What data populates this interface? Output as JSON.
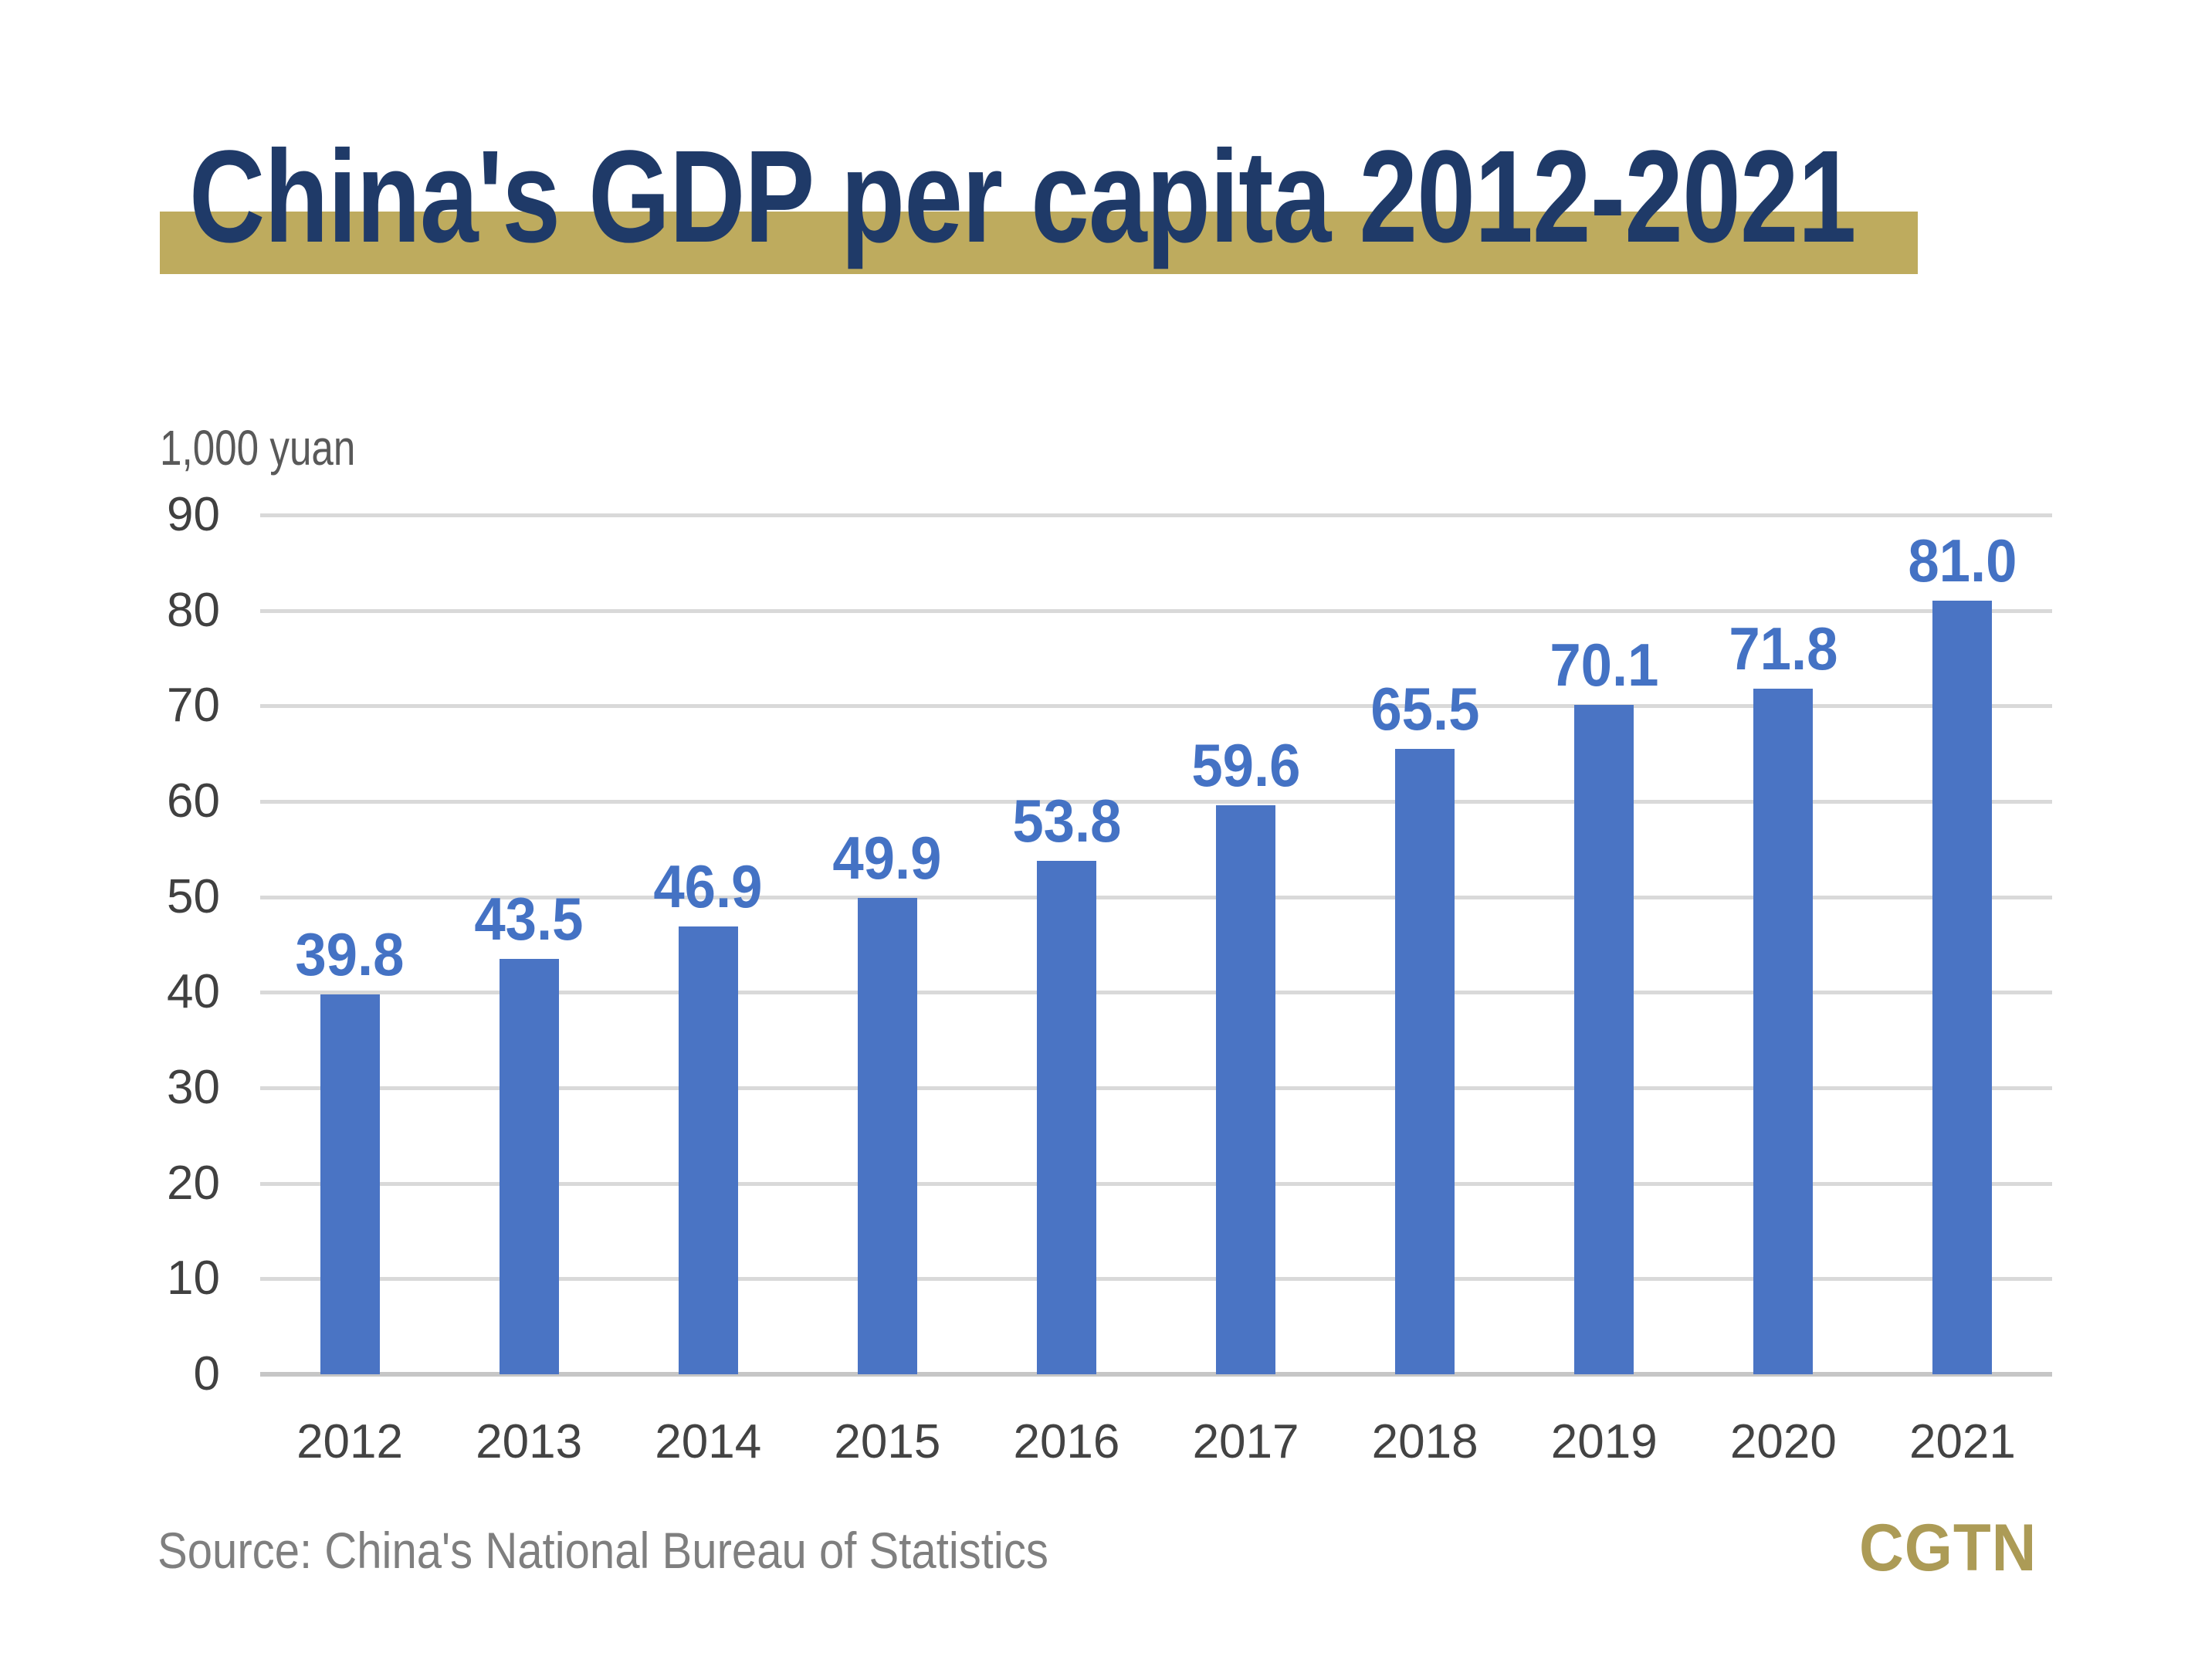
{
  "title": "China's GDP per capita 2012-2021",
  "unit_label": "1,000 yuan",
  "source": "Source: China's National Bureau of Statistics",
  "logo_text": "CGTN",
  "colors": {
    "title_navy": "#1F3A68",
    "highlight_gold": "#BEAB5E",
    "bar_blue": "#4A74C4",
    "value_label_blue": "#4472C4",
    "gridline_gray": "#D9D9D9",
    "axis_line_gray": "#C6C6C6",
    "tick_label_gray": "#404040",
    "year_label_gray": "#434343",
    "unit_label_gray": "#595959",
    "source_gray": "#7F7F7F",
    "logo_gold": "#AC9B56"
  },
  "chart_data": {
    "type": "bar",
    "title": "China's GDP per capita 2012-2021",
    "categories": [
      "2012",
      "2013",
      "2014",
      "2015",
      "2016",
      "2017",
      "2018",
      "2019",
      "2020",
      "2021"
    ],
    "values": [
      39.8,
      43.5,
      46.9,
      49.9,
      53.8,
      59.6,
      65.5,
      70.1,
      71.8,
      81.0
    ],
    "value_labels": [
      "39.8",
      "43.5",
      "46.9",
      "49.9",
      "53.8",
      "59.6",
      "65.5",
      "70.1",
      "71.8",
      "81.0"
    ],
    "xlabel": "",
    "ylabel": "1,000 yuan",
    "ylim": [
      0,
      90
    ],
    "yticks": [
      0,
      10,
      20,
      30,
      40,
      50,
      60,
      70,
      80,
      90
    ],
    "grid": true,
    "legend": null,
    "bar_color": "#4A74C4",
    "data_label_color": "#4472C4"
  }
}
